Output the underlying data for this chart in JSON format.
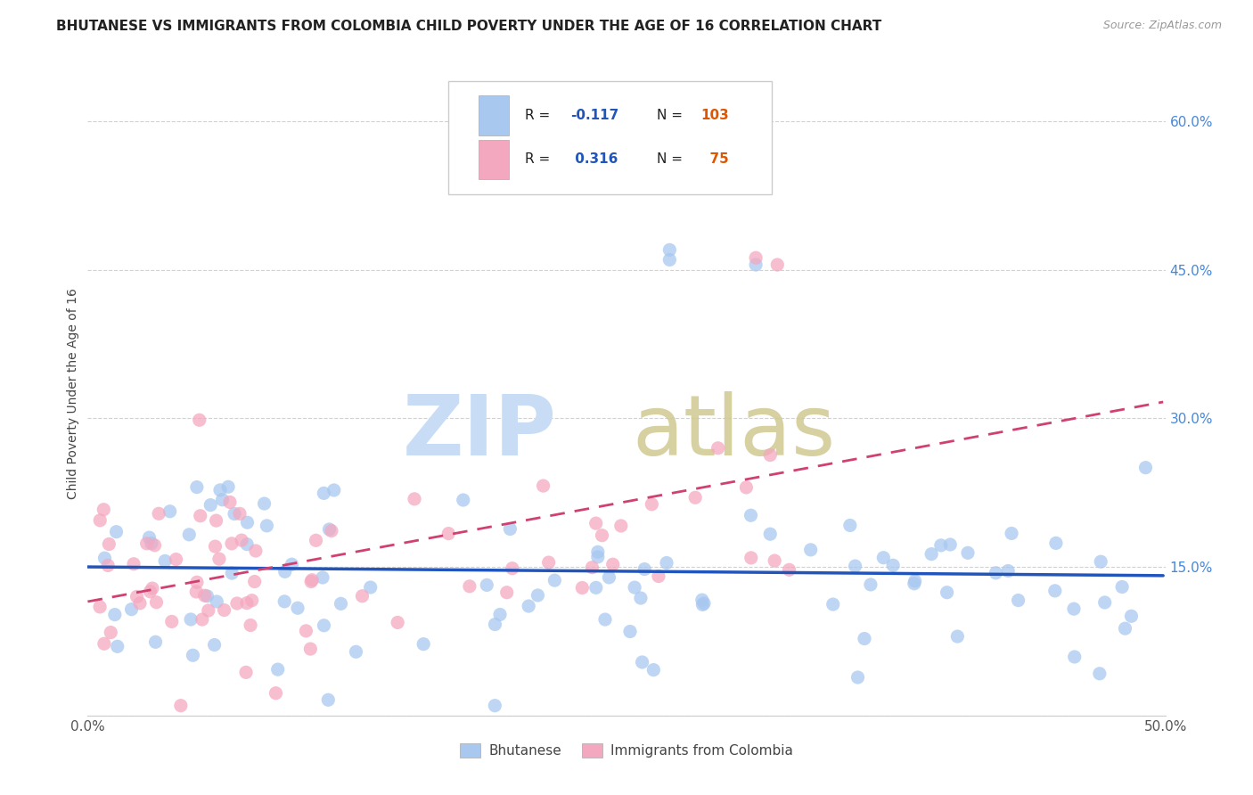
{
  "title": "BHUTANESE VS IMMIGRANTS FROM COLOMBIA CHILD POVERTY UNDER THE AGE OF 16 CORRELATION CHART",
  "source": "Source: ZipAtlas.com",
  "ylabel": "Child Poverty Under the Age of 16",
  "xlim": [
    0.0,
    0.5
  ],
  "ylim": [
    0.0,
    0.65
  ],
  "bhutanese_color": "#a8c8f0",
  "bhutanese_edge_color": "#a8c8f0",
  "colombia_color": "#f4a8c0",
  "colombia_edge_color": "#f4a8c0",
  "bhutanese_line_color": "#2255bb",
  "colombia_line_color": "#d04070",
  "bhutanese_R": -0.117,
  "bhutanese_N": 103,
  "colombia_R": 0.316,
  "colombia_N": 75,
  "legend_R_color": "#222222",
  "legend_val_color": "#2255bb",
  "legend_N_color": "#e05500",
  "right_tick_color": "#4488dd",
  "watermark_zip_color": "#c8ddf5",
  "watermark_atlas_color": "#d0c890"
}
